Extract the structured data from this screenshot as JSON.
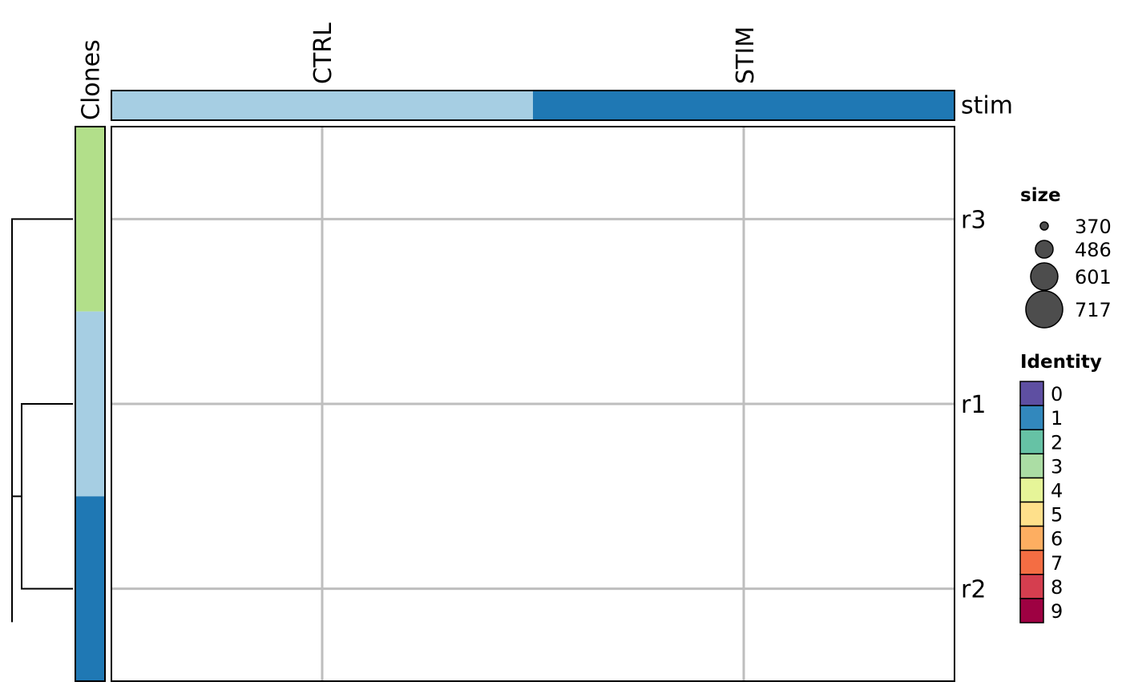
{
  "chart_data": {
    "type": "heatmap",
    "columns": [
      "CTRL",
      "STIM"
    ],
    "rows": [
      "r3",
      "r1",
      "r2"
    ],
    "column_annotation": {
      "name": "stim",
      "values": [
        "CTRL",
        "STIM"
      ],
      "colors": [
        "#A6CEE3",
        "#1F78B4"
      ]
    },
    "row_annotation": {
      "name": "Clones",
      "colors": [
        "#B2DF8A",
        "#A6CEE3",
        "#1F78B4"
      ]
    },
    "dendrogram": {
      "merges": [
        [
          "r1",
          "r2"
        ],
        [
          "r3",
          "r1+r2"
        ]
      ]
    },
    "grid": true,
    "legends": {
      "size": {
        "title": "size",
        "values": [
          370,
          486,
          601,
          717
        ],
        "fill": "#4D4D4D"
      },
      "identity": {
        "title": "Identity",
        "labels": [
          "0",
          "1",
          "2",
          "3",
          "4",
          "5",
          "6",
          "7",
          "8",
          "9"
        ],
        "colors": [
          "#5E4FA2",
          "#3288BD",
          "#66C2A5",
          "#ABDDA4",
          "#E6F598",
          "#FEE08B",
          "#FDAE61",
          "#F46D43",
          "#D53E4F",
          "#9E0142"
        ]
      }
    }
  }
}
